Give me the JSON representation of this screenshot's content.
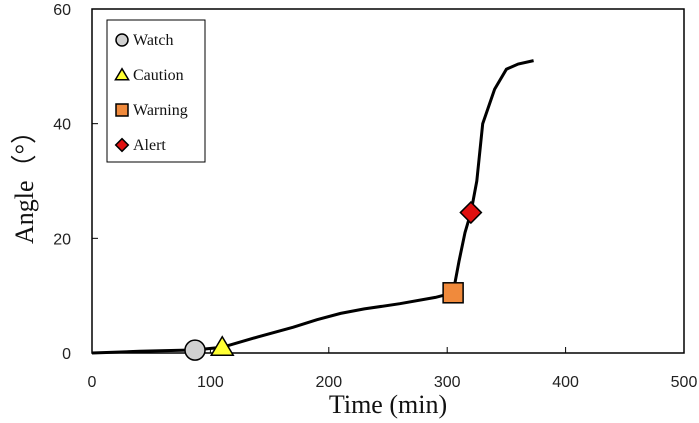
{
  "chart_data": {
    "type": "line",
    "xlabel": "Time (min)",
    "ylabel": "Angle（°）",
    "xlim": [
      0,
      500
    ],
    "ylim": [
      0,
      60
    ],
    "x_ticks": [
      0,
      100,
      200,
      300,
      400,
      500
    ],
    "y_ticks": [
      0,
      20,
      40,
      60
    ],
    "grid": false,
    "legend_position": "top-left",
    "line_color": "#000000",
    "series": [
      {
        "x": [
          0,
          40,
          80,
          90,
          110,
          140,
          170,
          190,
          210,
          230,
          260,
          290,
          305,
          310,
          315,
          320,
          325,
          330,
          340,
          350,
          360,
          373
        ],
        "y": [
          0,
          0.3,
          0.5,
          0.6,
          1.0,
          2.8,
          4.5,
          5.8,
          6.9,
          7.7,
          8.6,
          9.7,
          10.5,
          16,
          21,
          24.5,
          30,
          40,
          46,
          49.5,
          50.4,
          51
        ]
      }
    ],
    "markers": [
      {
        "label": "Watch",
        "shape": "circle",
        "color": "#d0d0d0",
        "x": 87,
        "y": 0.5
      },
      {
        "label": "Caution",
        "shape": "triangle",
        "color": "#ffff33",
        "x": 110,
        "y": 1.0
      },
      {
        "label": "Warning",
        "shape": "square",
        "color": "#f08a3c",
        "x": 305,
        "y": 10.5
      },
      {
        "label": "Alert",
        "shape": "diamond",
        "color": "#e01010",
        "x": 320,
        "y": 24.5
      }
    ]
  }
}
